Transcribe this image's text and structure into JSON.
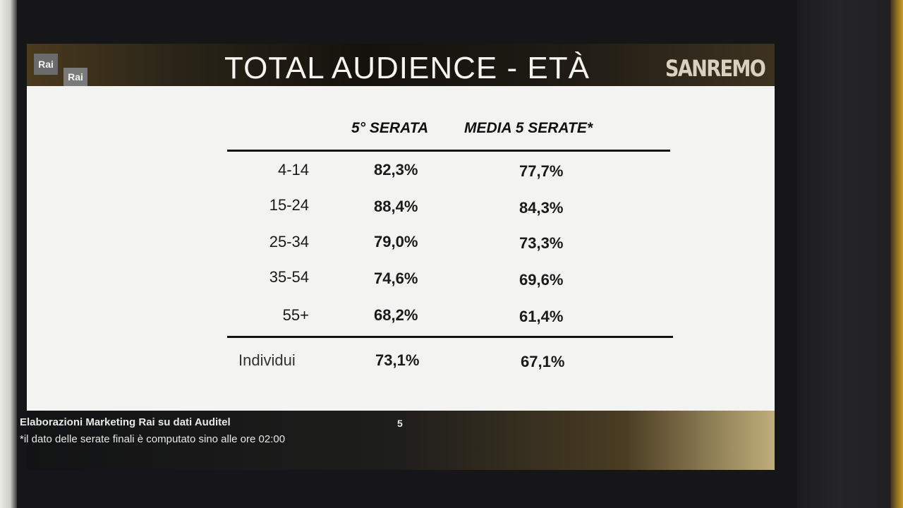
{
  "slide": {
    "title": "TOTAL AUDIENCE - ETÀ",
    "logo_primary": "Rai",
    "logo_secondary": "Rai",
    "brand": "SANREMO",
    "table": {
      "columns": [
        "5° SERATA",
        "MEDIA 5 SERATE*"
      ],
      "rows": [
        {
          "label": "4-14",
          "serata": "82,3%",
          "media": "77,7%"
        },
        {
          "label": "15-24",
          "serata": "88,4%",
          "media": "84,3%"
        },
        {
          "label": "25-34",
          "serata": "79,0%",
          "media": "73,3%"
        },
        {
          "label": "35-54",
          "serata": "74,6%",
          "media": "69,6%"
        },
        {
          "label": "55+",
          "serata": "68,2%",
          "media": "61,4%"
        }
      ],
      "total": {
        "label": "Individui",
        "serata": "73,1%",
        "media": "67,1%"
      }
    },
    "footer": {
      "source": "Elaborazioni Marketing Rai su dati Auditel",
      "note": "*il dato delle serate finali è computato sino alle ore 02:00",
      "page": "5"
    }
  }
}
